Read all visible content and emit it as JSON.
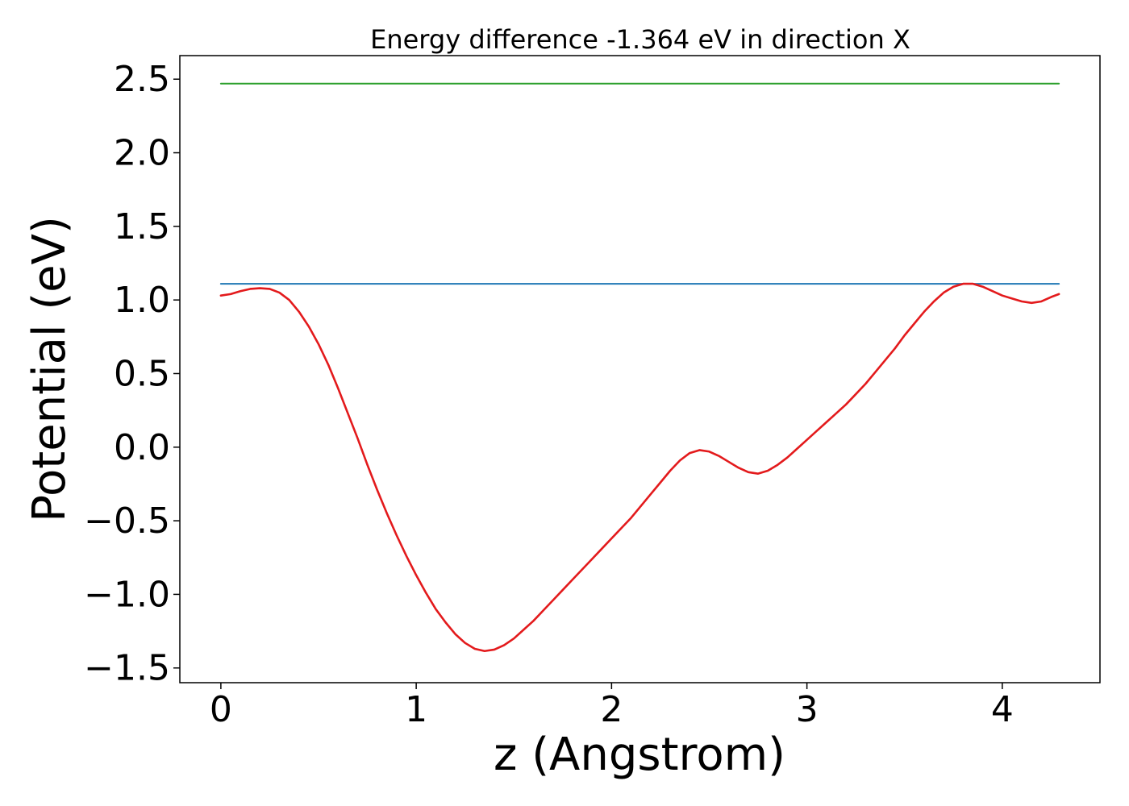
{
  "chart_data": {
    "type": "line",
    "title": "Energy difference -1.364 eV in direction X",
    "xlabel": "z (Angstrom)",
    "ylabel": "Potential (eV)",
    "xlim": [
      -0.21,
      4.5
    ],
    "ylim": [
      -1.6,
      2.66
    ],
    "xticks": [
      0,
      1,
      2,
      3,
      4
    ],
    "xtick_labels": [
      "0",
      "1",
      "2",
      "3",
      "4"
    ],
    "yticks": [
      -1.5,
      -1.0,
      -0.5,
      0.0,
      0.5,
      1.0,
      1.5,
      2.0,
      2.5
    ],
    "ytick_labels": [
      "−1.5",
      "−1.0",
      "−0.5",
      "0.0",
      "0.5",
      "1.0",
      "1.5",
      "2.0",
      "2.5"
    ],
    "grid": false,
    "series": [
      {
        "kind": "hline",
        "color": "#2ca02c",
        "x": [
          0,
          4.29
        ],
        "values": [
          2.47,
          2.47
        ]
      },
      {
        "kind": "hline",
        "color": "#1f77b4",
        "x": [
          0,
          4.29
        ],
        "values": [
          1.11,
          1.11
        ]
      },
      {
        "kind": "curve",
        "color": "#e31a1c",
        "x": [
          0,
          0.05,
          0.1,
          0.15,
          0.2,
          0.25,
          0.3,
          0.35,
          0.4,
          0.45,
          0.5,
          0.55,
          0.6,
          0.65,
          0.7,
          0.75,
          0.8,
          0.85,
          0.9,
          0.95,
          1.0,
          1.05,
          1.1,
          1.15,
          1.2,
          1.25,
          1.3,
          1.35,
          1.4,
          1.45,
          1.5,
          1.55,
          1.6,
          1.65,
          1.7,
          1.75,
          1.8,
          1.85,
          1.9,
          1.95,
          2.0,
          2.05,
          2.1,
          2.15,
          2.2,
          2.25,
          2.3,
          2.35,
          2.4,
          2.45,
          2.5,
          2.55,
          2.6,
          2.65,
          2.7,
          2.75,
          2.8,
          2.85,
          2.9,
          2.95,
          3.0,
          3.05,
          3.1,
          3.15,
          3.2,
          3.25,
          3.3,
          3.35,
          3.4,
          3.45,
          3.5,
          3.55,
          3.6,
          3.65,
          3.7,
          3.75,
          3.8,
          3.85,
          3.9,
          3.95,
          4.0,
          4.05,
          4.1,
          4.15,
          4.2,
          4.25,
          4.29
        ],
        "values": [
          1.03,
          1.04,
          1.06,
          1.075,
          1.08,
          1.075,
          1.05,
          1.0,
          0.92,
          0.82,
          0.7,
          0.56,
          0.4,
          0.23,
          0.06,
          -0.12,
          -0.29,
          -0.45,
          -0.6,
          -0.74,
          -0.87,
          -0.99,
          -1.1,
          -1.19,
          -1.27,
          -1.33,
          -1.37,
          -1.385,
          -1.375,
          -1.345,
          -1.3,
          -1.24,
          -1.18,
          -1.11,
          -1.04,
          -0.97,
          -0.9,
          -0.83,
          -0.76,
          -0.69,
          -0.62,
          -0.55,
          -0.48,
          -0.4,
          -0.32,
          -0.24,
          -0.16,
          -0.09,
          -0.04,
          -0.02,
          -0.03,
          -0.06,
          -0.1,
          -0.14,
          -0.17,
          -0.18,
          -0.16,
          -0.12,
          -0.07,
          -0.01,
          0.05,
          0.11,
          0.17,
          0.23,
          0.29,
          0.36,
          0.43,
          0.51,
          0.59,
          0.67,
          0.76,
          0.84,
          0.92,
          0.99,
          1.05,
          1.09,
          1.11,
          1.11,
          1.09,
          1.06,
          1.03,
          1.01,
          0.99,
          0.98,
          0.99,
          1.02,
          1.04
        ]
      }
    ]
  }
}
